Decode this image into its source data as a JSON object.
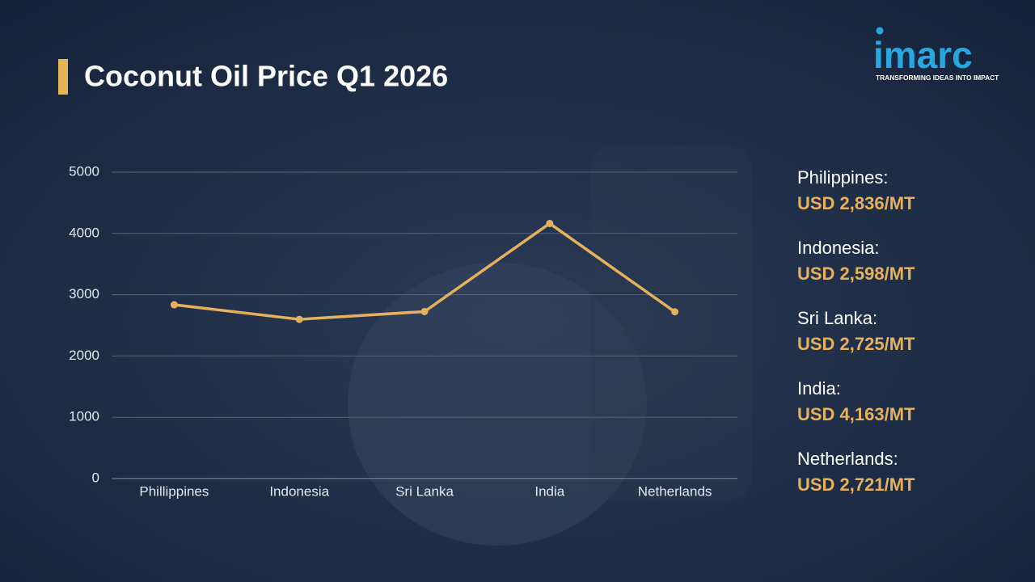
{
  "chart_data": {
    "type": "line",
    "title": "Coconut Oil Price Q1 2026",
    "categories": [
      "Phillippines",
      "Indonesia",
      "Sri Lanka",
      "India",
      "Netherlands"
    ],
    "values": [
      2836,
      2598,
      2725,
      4163,
      2721
    ],
    "value_labels": [
      "USD 2,836/MT",
      "USD 2,598/MT",
      "USD 2,725/MT",
      "USD 4,163/MT",
      "USD 2,721/MT"
    ],
    "price_labels": [
      "Philippines:",
      "Indonesia:",
      "Sri Lanka:",
      "India:",
      "Netherlands:"
    ],
    "color": "#e6b15c",
    "ylim": [
      0,
      5000
    ],
    "yticks": [
      0,
      1000,
      2000,
      3000,
      4000,
      5000
    ],
    "grid": true
  },
  "logo": {
    "name": "imarc",
    "tagline": "TRANSFORMING IDEAS INTO IMPACT"
  }
}
